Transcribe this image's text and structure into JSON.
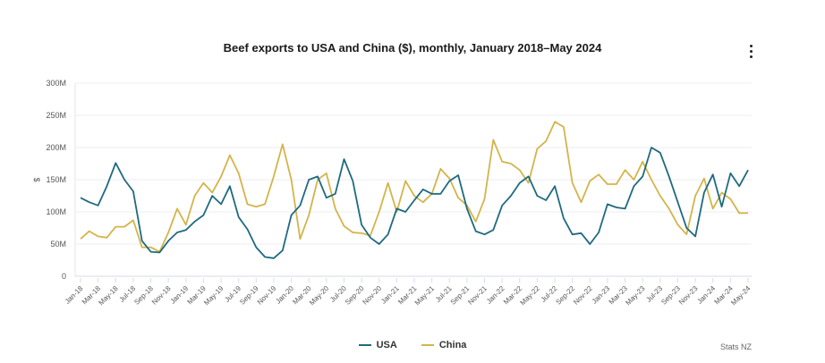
{
  "chart_data": {
    "type": "line",
    "title": "Beef exports to USA and China ($), monthly, January 2018–May 2024",
    "ylabel": "$",
    "xlabel": "",
    "ylim": [
      0,
      300
    ],
    "yunit": "M",
    "y_ticks": [
      "0",
      "50M",
      "100M",
      "150M",
      "200M",
      "250M",
      "300M"
    ],
    "y_tick_values": [
      0,
      50,
      100,
      150,
      200,
      250,
      300
    ],
    "grid": true,
    "legend_position": "bottom",
    "x": [
      "Jan-18",
      "Feb-18",
      "Mar-18",
      "Apr-18",
      "May-18",
      "Jun-18",
      "Jul-18",
      "Aug-18",
      "Sep-18",
      "Oct-18",
      "Nov-18",
      "Dec-18",
      "Jan-19",
      "Feb-19",
      "Mar-19",
      "Apr-19",
      "May-19",
      "Jun-19",
      "Jul-19",
      "Aug-19",
      "Sep-19",
      "Oct-19",
      "Nov-19",
      "Dec-19",
      "Jan-20",
      "Feb-20",
      "Mar-20",
      "Apr-20",
      "May-20",
      "Jun-20",
      "Jul-20",
      "Aug-20",
      "Sep-20",
      "Oct-20",
      "Nov-20",
      "Dec-20",
      "Jan-21",
      "Feb-21",
      "Mar-21",
      "Apr-21",
      "May-21",
      "Jun-21",
      "Jul-21",
      "Aug-21",
      "Sep-21",
      "Oct-21",
      "Nov-21",
      "Dec-21",
      "Jan-22",
      "Feb-22",
      "Mar-22",
      "Apr-22",
      "May-22",
      "Jun-22",
      "Jul-22",
      "Aug-22",
      "Sep-22",
      "Oct-22",
      "Nov-22",
      "Dec-22",
      "Jan-23",
      "Feb-23",
      "Mar-23",
      "Apr-23",
      "May-23",
      "Jun-23",
      "Jul-23",
      "Aug-23",
      "Sep-23",
      "Oct-23",
      "Nov-23",
      "Dec-23",
      "Jan-24",
      "Feb-24",
      "Mar-24",
      "Apr-24",
      "May-24"
    ],
    "x_tick_labels": [
      "Jan-18",
      "Mar-18",
      "May-18",
      "Jul-18",
      "Sep-18",
      "Nov-18",
      "Jan-19",
      "Mar-19",
      "May-19",
      "Jul-19",
      "Sep-19",
      "Nov-19",
      "Jan-20",
      "Mar-20",
      "May-20",
      "Jul-20",
      "Sep-20",
      "Nov-20",
      "Jan-21",
      "Mar-21",
      "May-21",
      "Jul-21",
      "Sep-21",
      "Nov-21",
      "Jan-22",
      "Mar-22",
      "May-22",
      "Jul-22",
      "Sep-22",
      "Nov-22",
      "Jan-23",
      "Mar-23",
      "May-23",
      "Jul-23",
      "Sep-23",
      "Nov-23",
      "Jan-24",
      "Mar-24",
      "May-24"
    ],
    "series": [
      {
        "name": "USA",
        "color": "#1f6a80",
        "values": [
          122,
          115,
          110,
          140,
          176,
          150,
          132,
          55,
          38,
          37,
          55,
          68,
          72,
          85,
          95,
          125,
          112,
          140,
          92,
          73,
          45,
          30,
          28,
          40,
          95,
          110,
          150,
          155,
          122,
          128,
          182,
          148,
          80,
          60,
          50,
          65,
          105,
          100,
          118,
          135,
          128,
          128,
          148,
          157,
          105,
          70,
          65,
          72,
          110,
          125,
          145,
          155,
          125,
          118,
          140,
          90,
          65,
          67,
          50,
          68,
          112,
          107,
          105,
          140,
          155,
          200,
          192,
          155,
          115,
          75,
          62,
          130,
          158,
          108,
          160,
          140,
          165
        ]
      },
      {
        "name": "China",
        "color": "#d4b44a",
        "values": [
          58,
          70,
          62,
          60,
          77,
          77,
          87,
          45,
          45,
          38,
          68,
          105,
          80,
          125,
          145,
          130,
          155,
          188,
          160,
          112,
          108,
          112,
          155,
          205,
          150,
          58,
          95,
          150,
          160,
          105,
          78,
          68,
          67,
          63,
          100,
          145,
          100,
          148,
          125,
          115,
          128,
          167,
          152,
          122,
          110,
          85,
          120,
          212,
          178,
          175,
          165,
          145,
          198,
          210,
          240,
          232,
          145,
          115,
          148,
          158,
          143,
          143,
          165,
          150,
          178,
          150,
          125,
          105,
          80,
          65,
          125,
          152,
          105,
          130,
          120,
          98,
          98
        ]
      }
    ]
  },
  "legend": {
    "usa_label": "USA",
    "china_label": "China"
  },
  "source": "Stats NZ",
  "menu_icon": "more-vertical-icon"
}
